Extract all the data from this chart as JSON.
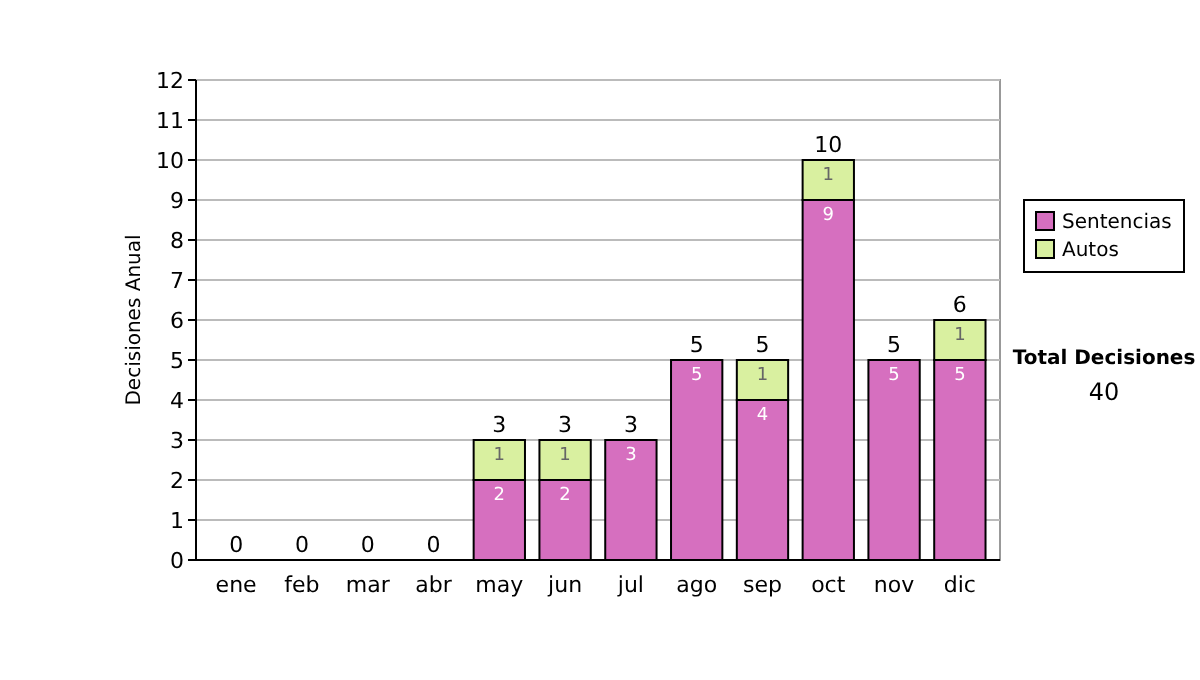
{
  "chart_data": {
    "type": "bar",
    "stacked": true,
    "ylabel": "Decisiones Anual",
    "categories": [
      "ene",
      "feb",
      "mar",
      "abr",
      "may",
      "jun",
      "jul",
      "ago",
      "sep",
      "oct",
      "nov",
      "dic"
    ],
    "series": [
      {
        "name": "Sentencias",
        "color": "#d66fbf",
        "values": [
          0,
          0,
          0,
          0,
          2,
          2,
          3,
          5,
          4,
          9,
          5,
          5
        ],
        "value_labels": [
          null,
          null,
          null,
          null,
          "2",
          "2",
          "3",
          "5",
          "4",
          "9",
          "5",
          "5"
        ]
      },
      {
        "name": "Autos",
        "color": "#d9f0a0",
        "values": [
          0,
          0,
          0,
          0,
          1,
          1,
          0,
          0,
          1,
          1,
          0,
          1
        ],
        "value_labels": [
          null,
          null,
          null,
          null,
          "1",
          "1",
          null,
          null,
          "1",
          "1",
          null,
          "1"
        ]
      }
    ],
    "totals": [
      "0",
      "0",
      "0",
      "0",
      "3",
      "3",
      "3",
      "5",
      "5",
      "10",
      "5",
      "6"
    ],
    "ylim": [
      0,
      12
    ],
    "yticks": [
      0,
      1,
      2,
      3,
      4,
      5,
      6,
      7,
      8,
      9,
      10,
      11,
      12
    ],
    "grid": "y",
    "legend": "right",
    "annotations": [
      "Total Decisiones",
      "40"
    ]
  }
}
